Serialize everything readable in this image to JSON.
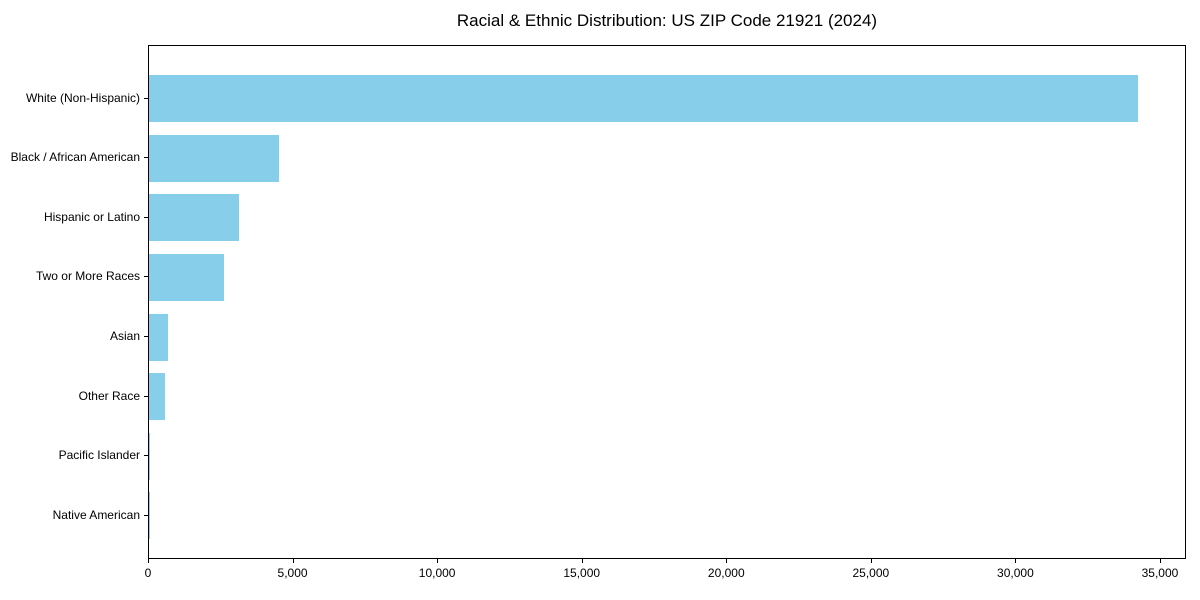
{
  "chart_data": {
    "type": "bar",
    "orientation": "horizontal",
    "title": "Racial & Ethnic Distribution: US ZIP Code 21921 (2024)",
    "categories": [
      "White (Non-Hispanic)",
      "Black / African American",
      "Hispanic or Latino",
      "Two or More Races",
      "Asian",
      "Other Race",
      "Pacific Islander",
      "Native American"
    ],
    "values": [
      34200,
      4500,
      3100,
      2600,
      670,
      560,
      40,
      15
    ],
    "xlabel": "",
    "ylabel": "",
    "xlim": [
      0,
      35900
    ],
    "x_ticks": [
      0,
      5000,
      10000,
      15000,
      20000,
      25000,
      30000,
      35000
    ],
    "x_tick_labels": [
      "0",
      "5,000",
      "10,000",
      "15,000",
      "20,000",
      "25,000",
      "30,000",
      "35,000"
    ],
    "bar_color": "#87CEEB",
    "background_color": "#FFFFFF",
    "axis_color": "#000000",
    "grid": false,
    "legend": "none"
  }
}
